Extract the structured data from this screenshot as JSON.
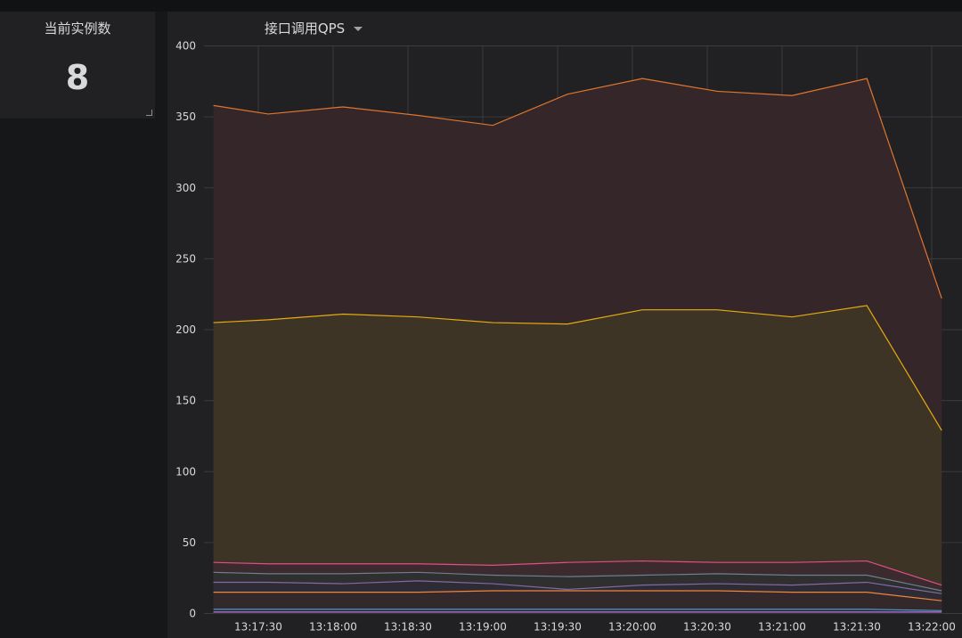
{
  "stat": {
    "title": "当前实例数",
    "value": "8"
  },
  "graph": {
    "title": "接口调用QPS"
  },
  "chart_data": {
    "type": "line",
    "title": "接口调用QPS",
    "ylim": [
      0,
      400
    ],
    "y_ticks": [
      0,
      50,
      100,
      150,
      200,
      250,
      300,
      350,
      400
    ],
    "x_tick_labels": [
      "13:17:30",
      "13:18:00",
      "13:18:30",
      "13:19:00",
      "13:19:30",
      "13:20:00",
      "13:20:30",
      "13:21:00",
      "13:21:30",
      "13:22:00"
    ],
    "x": [
      "13:17:12",
      "13:17:34",
      "13:18:04",
      "13:18:34",
      "13:19:04",
      "13:19:34",
      "13:20:04",
      "13:20:34",
      "13:21:04",
      "13:21:34",
      "13:22:04"
    ],
    "grid": true,
    "series": [
      {
        "color": "#e0752d",
        "fill": "#35262a",
        "values": [
          358,
          352,
          357,
          351,
          344,
          366,
          377,
          368,
          365,
          377,
          222
        ]
      },
      {
        "color": "#e5ac0e",
        "fill": "#3e3426",
        "values": [
          205,
          207,
          211,
          209,
          205,
          204,
          214,
          214,
          209,
          217,
          129
        ]
      },
      {
        "color": "#e24d86",
        "fill": "#3b2b2e",
        "values": [
          36,
          35,
          35,
          35,
          34,
          36,
          37,
          36,
          36,
          37,
          20
        ]
      },
      {
        "color": "#6d7f8b",
        "fill": "#2f2f30",
        "values": [
          29,
          28,
          28,
          29,
          27,
          26,
          27,
          28,
          27,
          27,
          16
        ]
      },
      {
        "color": "#7e6ba5",
        "fill": "#2f2b35",
        "values": [
          22,
          22,
          21,
          23,
          21,
          17,
          20,
          21,
          20,
          22,
          14
        ]
      },
      {
        "color": "#ef843c",
        "fill": "#34292a",
        "values": [
          15,
          15,
          15,
          15,
          16,
          16,
          16,
          16,
          15,
          15,
          9
        ]
      },
      {
        "color": "#5195ce",
        "fill": "#262b33",
        "values": [
          3,
          3,
          3,
          3,
          3,
          3,
          3,
          3,
          3,
          3,
          2
        ]
      },
      {
        "color": "#b877d9",
        "fill": "#2c2633",
        "values": [
          1,
          1,
          1,
          1,
          1,
          1,
          1,
          1,
          1,
          1,
          1
        ]
      }
    ]
  }
}
